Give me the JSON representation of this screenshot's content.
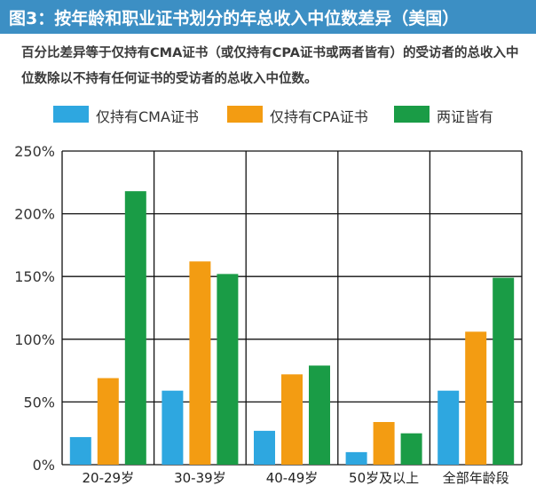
{
  "header": {
    "title": "图3：按年龄和职业证书划分的年总收入中位数差异（美国）"
  },
  "subtitle": "百分比差异等于仅持有CMA证书（或仅持有CPA证书或两者皆有）的受访者的总收入中位数除以不持有任何证书的受访者的总收入中位数。",
  "chart_data": {
    "type": "bar",
    "title": "图3：按年龄和职业证书划分的年总收入中位数差异（美国）",
    "categories": [
      "20-29岁",
      "30-39岁",
      "40-49岁",
      "50岁及以上",
      "全部年龄段"
    ],
    "series": [
      {
        "name": "仅持有CMA证书",
        "color": "#2ea7e0",
        "values": [
          22,
          59,
          27,
          10,
          59
        ]
      },
      {
        "name": "仅持有CPA证书",
        "color": "#f39c12",
        "values": [
          69,
          162,
          72,
          34,
          106
        ]
      },
      {
        "name": "两证皆有",
        "color": "#1a9c46",
        "values": [
          218,
          152,
          79,
          25,
          149
        ]
      }
    ],
    "yticks": [
      "0%",
      "50%",
      "100%",
      "150%",
      "200%",
      "250%"
    ],
    "ylim": [
      0,
      250
    ],
    "unit": "%",
    "grid": true,
    "legend_position": "top"
  }
}
